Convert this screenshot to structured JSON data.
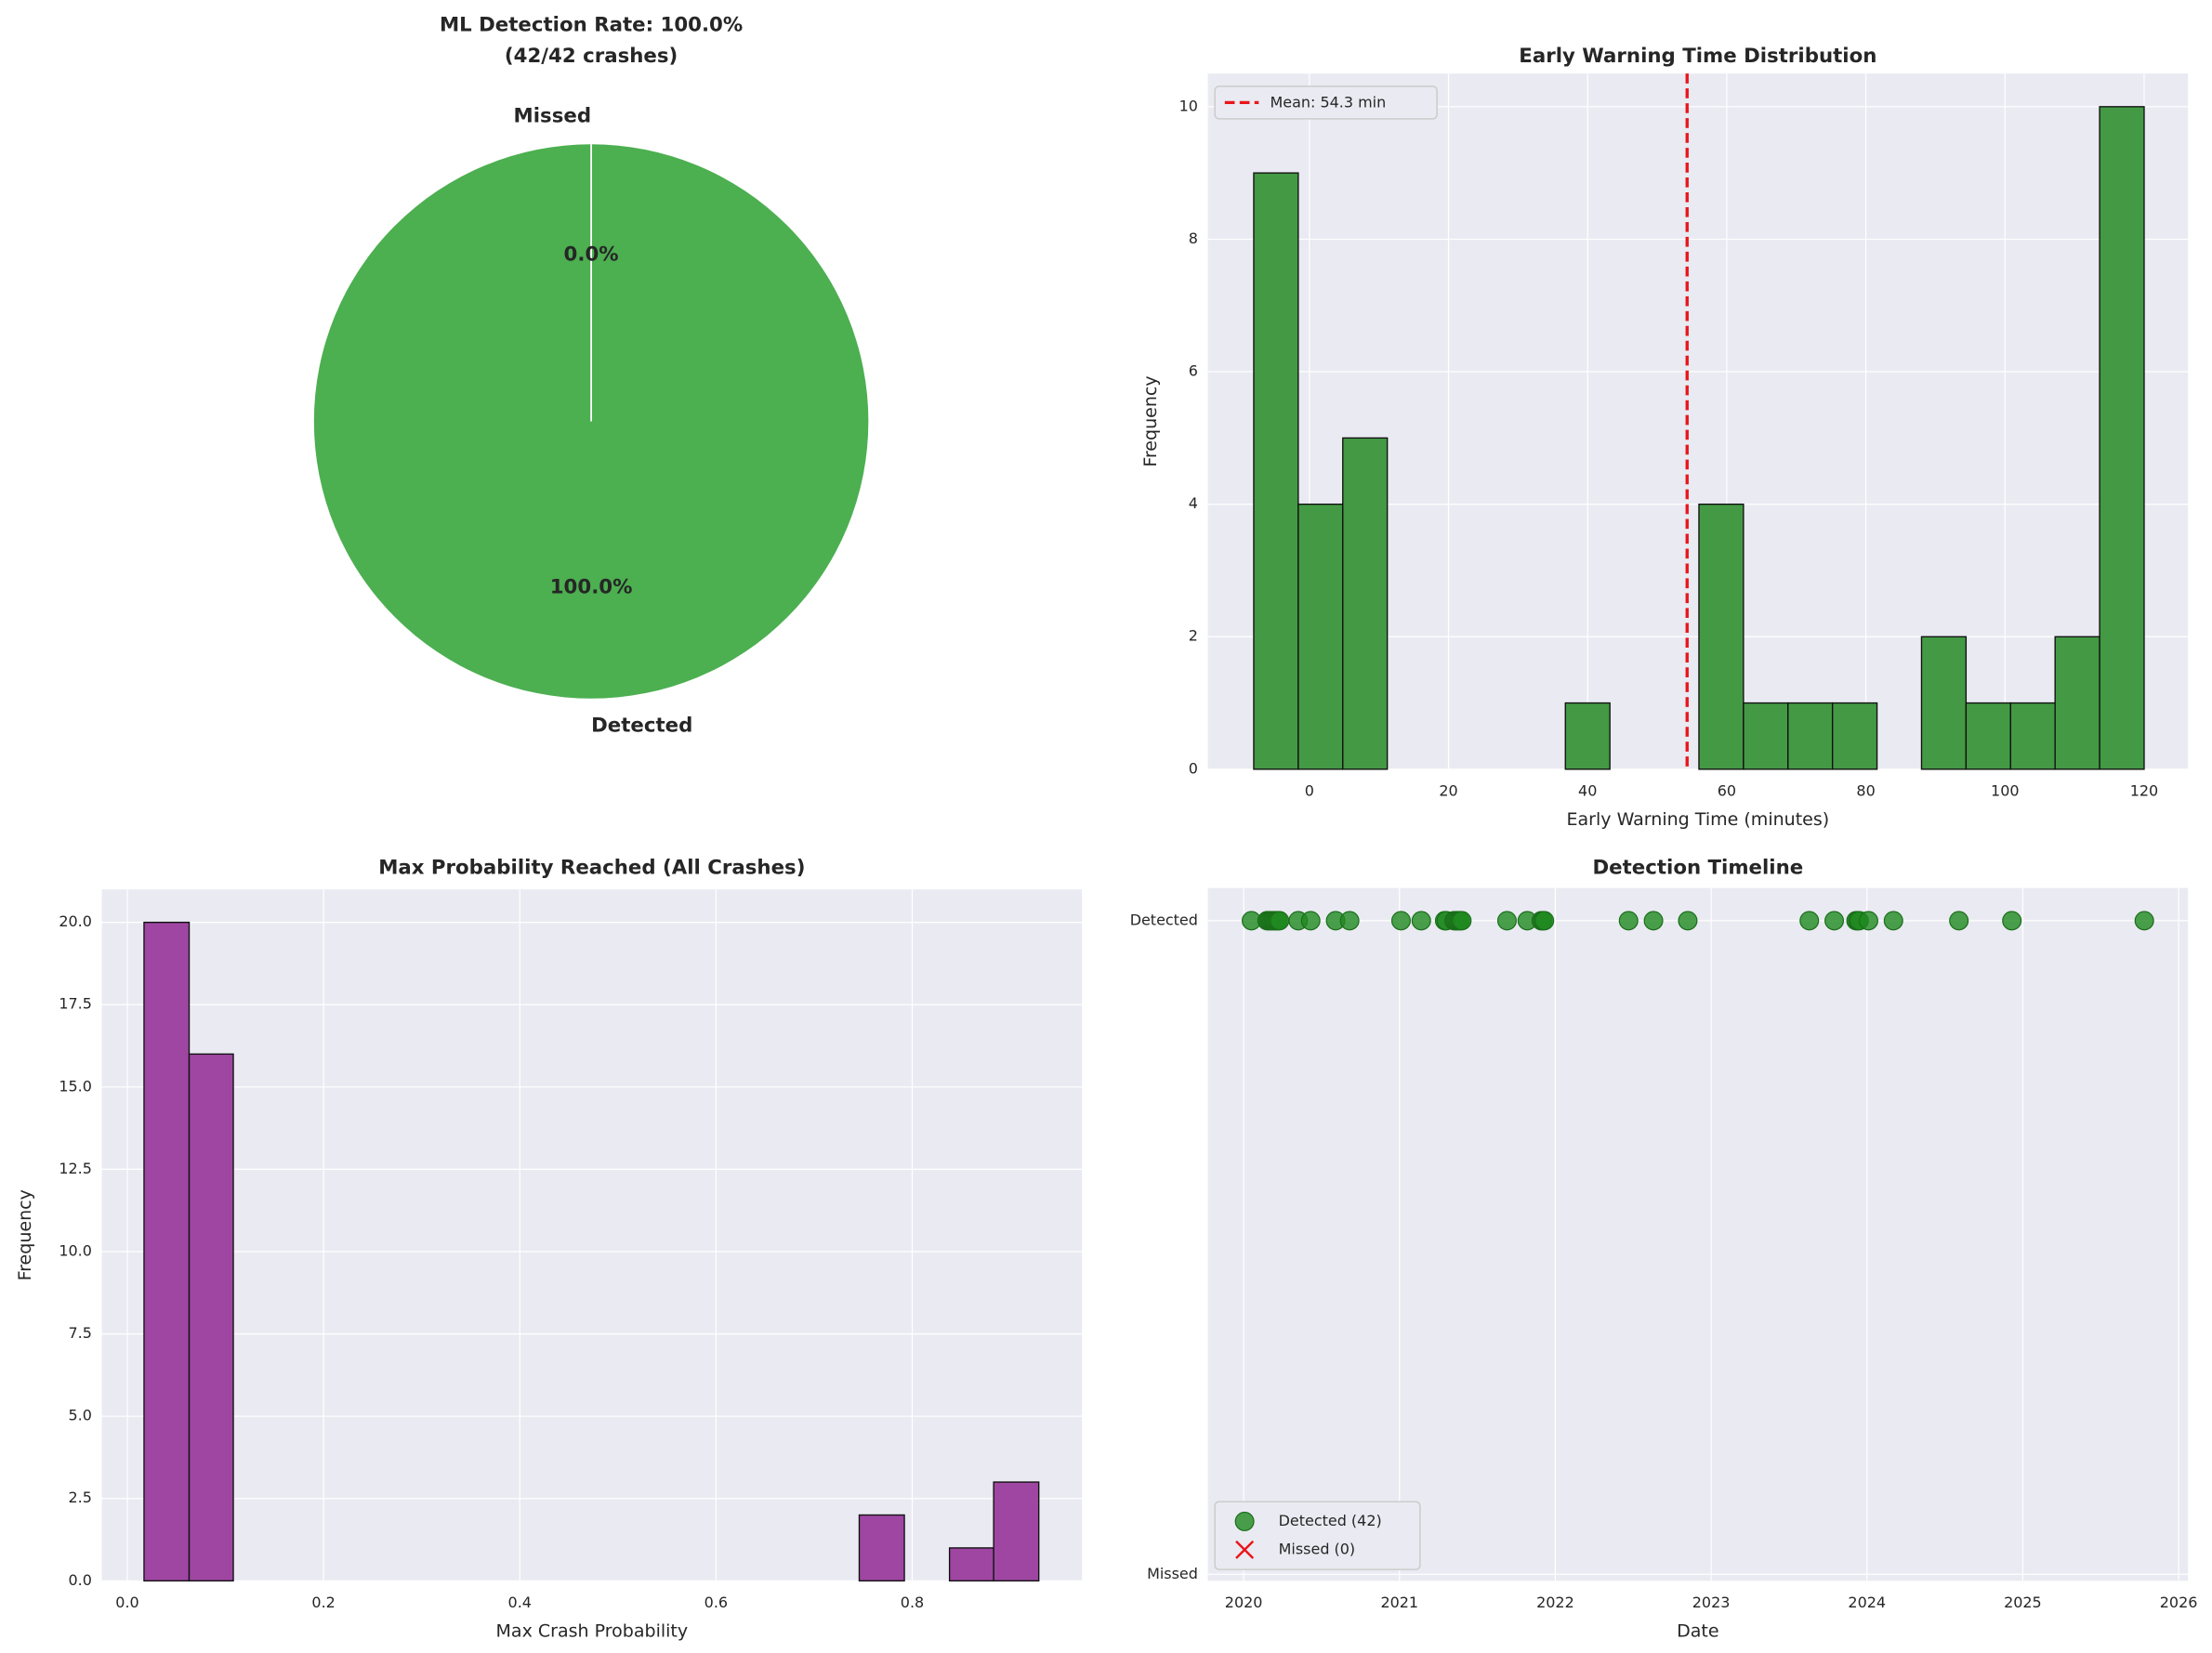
{
  "chart_data": [
    {
      "type": "pie",
      "title": "ML Detection Rate: 100.0%",
      "subtitle": "(42/42 crashes)",
      "categories": [
        "Detected",
        "Missed"
      ],
      "values": [
        100,
        0
      ],
      "value_labels": [
        "100.0%",
        "0.0%"
      ],
      "colors": [
        "#4caf50",
        "#f44336"
      ]
    },
    {
      "type": "histogram",
      "title": "Early Warning Time Distribution",
      "x_label": "Early Warning Time (minutes)",
      "y_label": "Frequency",
      "bins": [
        -8,
        -1.6,
        4.8,
        11.2,
        17.6,
        24,
        30.4,
        36.8,
        43.2,
        49.6,
        56,
        62.4,
        68.8,
        75.2,
        81.6,
        88,
        94.4,
        100.8,
        107.2,
        113.6,
        120
      ],
      "values": [
        9,
        4,
        5,
        0,
        0,
        0,
        0,
        1,
        0,
        0,
        4,
        1,
        1,
        1,
        0,
        2,
        1,
        1,
        2,
        10
      ],
      "color": "#449944",
      "mean": 54.3,
      "mean_label": "Mean: 54.3 min",
      "mean_color": "#e8161b",
      "xlim": [
        -14.6,
        126.3
      ],
      "xticks": [
        0,
        20,
        40,
        60,
        80,
        100,
        120
      ],
      "ylim": [
        0,
        10.5
      ],
      "yticks": [
        0,
        2,
        4,
        6,
        8,
        10
      ],
      "grid": true,
      "legend": "upper left"
    },
    {
      "type": "histogram",
      "title": "Max Probability Reached (All Crashes)",
      "x_label": "Max Crash Probability",
      "y_label": "Frequency",
      "bins": [
        0.017,
        0.063,
        0.108,
        0.154,
        0.199,
        0.245,
        0.291,
        0.336,
        0.382,
        0.427,
        0.473,
        0.518,
        0.564,
        0.61,
        0.655,
        0.701,
        0.746,
        0.792,
        0.838,
        0.883,
        0.929
      ],
      "values": [
        20,
        16,
        0,
        0,
        0,
        0,
        0,
        0,
        0,
        0,
        0,
        0,
        0,
        0,
        0,
        0,
        2,
        0,
        1,
        3
      ],
      "color": "#9e46a2",
      "xlim": [
        -0.026,
        0.973
      ],
      "xticks": [
        {
          "value": 0,
          "label": "0.0"
        },
        {
          "value": 0.2,
          "label": "0.2"
        },
        {
          "value": 0.4,
          "label": "0.4"
        },
        {
          "value": 0.6,
          "label": "0.6"
        },
        {
          "value": 0.8,
          "label": "0.8"
        }
      ],
      "ylim": [
        0,
        21
      ],
      "yticks": [
        {
          "value": 0,
          "label": "0.0"
        },
        {
          "value": 2.5,
          "label": "2.5"
        },
        {
          "value": 5,
          "label": "5.0"
        },
        {
          "value": 7.5,
          "label": "7.5"
        },
        {
          "value": 10,
          "label": "10.0"
        },
        {
          "value": 12.5,
          "label": "12.5"
        },
        {
          "value": 15,
          "label": "15.0"
        },
        {
          "value": 17.5,
          "label": "17.5"
        },
        {
          "value": 20,
          "label": "20.0"
        }
      ],
      "grid": true
    },
    {
      "type": "scatter",
      "title": "Detection Timeline",
      "x_label": "Date",
      "series": [
        {
          "name": "Detected (42)",
          "color": "#1f8a1f",
          "marker": "circle",
          "x": [
            2020.05,
            2020.15,
            2020.16,
            2020.17,
            2020.18,
            2020.19,
            2020.2,
            2020.21,
            2020.22,
            2020.23,
            2020.35,
            2020.43,
            2020.59,
            2020.68,
            2021.01,
            2021.14,
            2021.29,
            2021.3,
            2021.35,
            2021.36,
            2021.37,
            2021.38,
            2021.39,
            2021.4,
            2021.69,
            2021.82,
            2021.91,
            2021.92,
            2021.93,
            2022.47,
            2022.63,
            2022.85,
            2023.63,
            2023.79,
            2023.93,
            2023.94,
            2023.95,
            2024.01,
            2024.17,
            2024.59,
            2024.93,
            2025.78
          ],
          "values": [
            1,
            1,
            1,
            1,
            1,
            1,
            1,
            1,
            1,
            1,
            1,
            1,
            1,
            1,
            1,
            1,
            1,
            1,
            1,
            1,
            1,
            1,
            1,
            1,
            1,
            1,
            1,
            1,
            1,
            1,
            1,
            1,
            1,
            1,
            1,
            1,
            1,
            1,
            1,
            1,
            1,
            1
          ]
        },
        {
          "name": "Missed (0)",
          "color": "#e8161b",
          "marker": "x",
          "x": [],
          "values": []
        }
      ],
      "xlim": [
        2019.77,
        2026.06
      ],
      "xticks": [
        2020,
        2021,
        2022,
        2023,
        2024,
        2025,
        2026
      ],
      "ylim": [
        -0.01,
        1.05
      ],
      "yticks": [
        {
          "value": 0,
          "label": "Missed"
        },
        {
          "value": 1,
          "label": "Detected"
        }
      ],
      "grid": true,
      "legend": "lower left"
    }
  ]
}
